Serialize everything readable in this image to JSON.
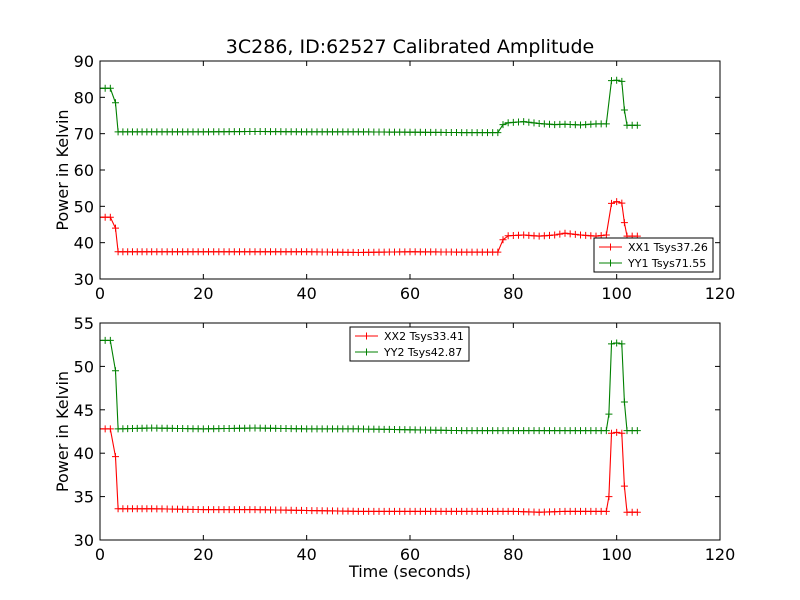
{
  "figure": {
    "title": "3C286, ID:62527 Calibrated Amplitude",
    "xlabel": "Time (seconds)"
  },
  "chart_data": [
    {
      "type": "line",
      "title": "3C286, ID:62527 Calibrated Amplitude",
      "xlabel": "",
      "ylabel": "Power in Kelvin",
      "xlim": [
        0,
        120
      ],
      "ylim": [
        30,
        90
      ],
      "xticks": [
        0,
        20,
        40,
        60,
        80,
        100,
        120
      ],
      "yticks": [
        30,
        40,
        50,
        60,
        70,
        80,
        90
      ],
      "grid": false,
      "legend_position": "lower-right",
      "markers": "+",
      "series": [
        {
          "name": "XX1 Tsys37.26",
          "color": "#ff0000",
          "points": [
            [
              0,
              47
            ],
            [
              1,
              47
            ],
            [
              2,
              47
            ],
            [
              3,
              44
            ],
            [
              3.5,
              37.5
            ],
            [
              10,
              37.5
            ],
            [
              20,
              37.5
            ],
            [
              30,
              37.5
            ],
            [
              40,
              37.5
            ],
            [
              50,
              37.3
            ],
            [
              60,
              37.5
            ],
            [
              70,
              37.4
            ],
            [
              77,
              37.4
            ],
            [
              78,
              40.8
            ],
            [
              79,
              41.9
            ],
            [
              82,
              42.1
            ],
            [
              85,
              41.8
            ],
            [
              88,
              42.1
            ],
            [
              90,
              42.6
            ],
            [
              93,
              42.1
            ],
            [
              96,
              41.8
            ],
            [
              98,
              42.1
            ],
            [
              99,
              50.8
            ],
            [
              100,
              51.3
            ],
            [
              101,
              50.9
            ],
            [
              101.5,
              45.5
            ],
            [
              102,
              41.8
            ],
            [
              104,
              41.8
            ]
          ]
        },
        {
          "name": "YY1 Tsys71.55",
          "color": "#008000",
          "points": [
            [
              0,
              82.5
            ],
            [
              1,
              82.5
            ],
            [
              2,
              82.5
            ],
            [
              3,
              78.5
            ],
            [
              3.5,
              70.5
            ],
            [
              10,
              70.5
            ],
            [
              20,
              70.5
            ],
            [
              30,
              70.6
            ],
            [
              40,
              70.5
            ],
            [
              50,
              70.5
            ],
            [
              60,
              70.4
            ],
            [
              70,
              70.3
            ],
            [
              77,
              70.3
            ],
            [
              78,
              72.5
            ],
            [
              79,
              73
            ],
            [
              82,
              73.3
            ],
            [
              85,
              72.8
            ],
            [
              88,
              72.5
            ],
            [
              90,
              72.6
            ],
            [
              93,
              72.4
            ],
            [
              96,
              72.7
            ],
            [
              98,
              72.7
            ],
            [
              99,
              84.6
            ],
            [
              100,
              84.7
            ],
            [
              101,
              84.4
            ],
            [
              101.5,
              76.5
            ],
            [
              102,
              72.3
            ],
            [
              104,
              72.3
            ]
          ]
        }
      ]
    },
    {
      "type": "line",
      "title": "",
      "xlabel": "Time (seconds)",
      "ylabel": "Power in Kelvin",
      "xlim": [
        0,
        120
      ],
      "ylim": [
        30,
        55
      ],
      "xticks": [
        0,
        20,
        40,
        60,
        80,
        100,
        120
      ],
      "yticks": [
        30,
        35,
        40,
        45,
        50,
        55
      ],
      "grid": false,
      "legend_position": "top-center",
      "markers": "+",
      "series": [
        {
          "name": "XX2 Tsys33.41",
          "color": "#ff0000",
          "points": [
            [
              0,
              42.8
            ],
            [
              1,
              42.8
            ],
            [
              2,
              42.8
            ],
            [
              3,
              39.6
            ],
            [
              3.5,
              33.6
            ],
            [
              10,
              33.6
            ],
            [
              20,
              33.5
            ],
            [
              30,
              33.5
            ],
            [
              40,
              33.4
            ],
            [
              50,
              33.3
            ],
            [
              60,
              33.3
            ],
            [
              70,
              33.3
            ],
            [
              80,
              33.3
            ],
            [
              85,
              33.2
            ],
            [
              90,
              33.3
            ],
            [
              95,
              33.3
            ],
            [
              98,
              33.3
            ],
            [
              98.5,
              35
            ],
            [
              99,
              42.3
            ],
            [
              100,
              42.4
            ],
            [
              101,
              42.3
            ],
            [
              101.5,
              36.2
            ],
            [
              102,
              33.2
            ],
            [
              104,
              33.2
            ]
          ]
        },
        {
          "name": "YY2 Tsys42.87",
          "color": "#008000",
          "points": [
            [
              0,
              53
            ],
            [
              1,
              53
            ],
            [
              2,
              53
            ],
            [
              3,
              49.5
            ],
            [
              3.5,
              42.8
            ],
            [
              10,
              42.9
            ],
            [
              20,
              42.8
            ],
            [
              30,
              42.9
            ],
            [
              40,
              42.8
            ],
            [
              50,
              42.8
            ],
            [
              60,
              42.7
            ],
            [
              70,
              42.6
            ],
            [
              80,
              42.6
            ],
            [
              85,
              42.6
            ],
            [
              90,
              42.6
            ],
            [
              95,
              42.6
            ],
            [
              98,
              42.6
            ],
            [
              98.5,
              44.5
            ],
            [
              99,
              52.6
            ],
            [
              100,
              52.7
            ],
            [
              101,
              52.6
            ],
            [
              101.5,
              45.9
            ],
            [
              102,
              42.6
            ],
            [
              104,
              42.6
            ]
          ]
        }
      ]
    }
  ]
}
